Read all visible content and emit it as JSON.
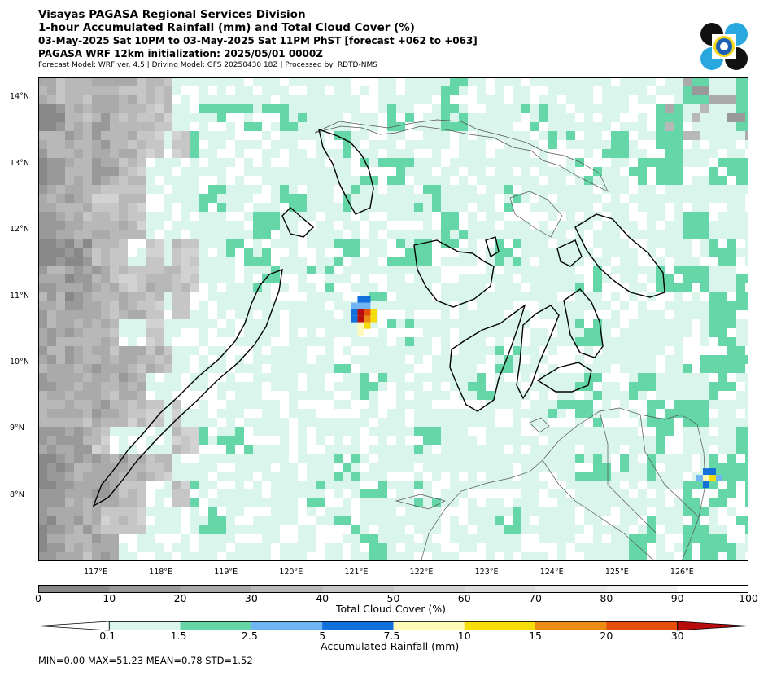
{
  "header": {
    "line1": "Visayas PAGASA Regional Services Division",
    "line2": "1-hour Accumulated Rainfall (mm) and Total Cloud Cover (%)",
    "line3": "03-May-2025 Sat 10PM to 03-May-2025 Sat 11PM PhST [forecast +062 to +063]",
    "line4": "PAGASA WRF 12km initialization: 2025/05/01 0000Z",
    "line5": "Forecast Model: WRF ver. 4.5 | Driving Model: GFS 20250430 18Z | Processed by: RDTD-NMS"
  },
  "logo": {
    "icon": "pagasa-logo-icon"
  },
  "map": {
    "lat_labels": [
      "14°N",
      "13°N",
      "12°N",
      "11°N",
      "10°N",
      "9°N",
      "8°N"
    ],
    "lon_labels": [
      "117°E",
      "118°E",
      "119°E",
      "120°E",
      "121°E",
      "122°E",
      "123°E",
      "124°E",
      "125°E",
      "126°E"
    ],
    "lat_values": [
      14,
      13,
      12,
      11,
      10,
      9,
      8
    ],
    "lon_values": [
      117,
      118,
      119,
      120,
      121,
      122,
      123,
      124,
      125,
      126
    ],
    "extent": {
      "lon": [
        116.1,
        127.0
      ],
      "lat": [
        7.0,
        14.3
      ]
    },
    "colors": {
      "land_outline": "#000000",
      "province_outline": "#555555"
    }
  },
  "cloud_colorbar": {
    "label": "Total Cloud Cover (%)",
    "ticks": [
      "0",
      "10",
      "20",
      "30",
      "40",
      "50",
      "60",
      "70",
      "80",
      "90",
      "100"
    ],
    "colors": [
      "#888888",
      "#999999",
      "#aaaaaa",
      "#b8b8b8",
      "#c6c6c6",
      "#d2d2d2",
      "#dcdcdc",
      "#e6e6e6",
      "#efefef",
      "#ffffff"
    ]
  },
  "rain_colorbar": {
    "label": "Accumulated Rainfall (mm)",
    "ticks": [
      "0.1",
      "1.5",
      "2.5",
      "5",
      "7.5",
      "10",
      "15",
      "20",
      "30"
    ],
    "colors": [
      "#d9f5ec",
      "#64d6a8",
      "#70b4f4",
      "#1070dc",
      "#fffab8",
      "#f5dc0a",
      "#ec8c14",
      "#e4500a",
      "#b80c0c"
    ],
    "under_color": "#ffffff",
    "over_color": "#b80c0c"
  },
  "stats": {
    "text": "MIN=0.00   MAX=51.23   MEAN=0.78   STD=1.52",
    "min": 0.0,
    "max": 51.23,
    "mean": 0.78,
    "std": 1.52
  }
}
